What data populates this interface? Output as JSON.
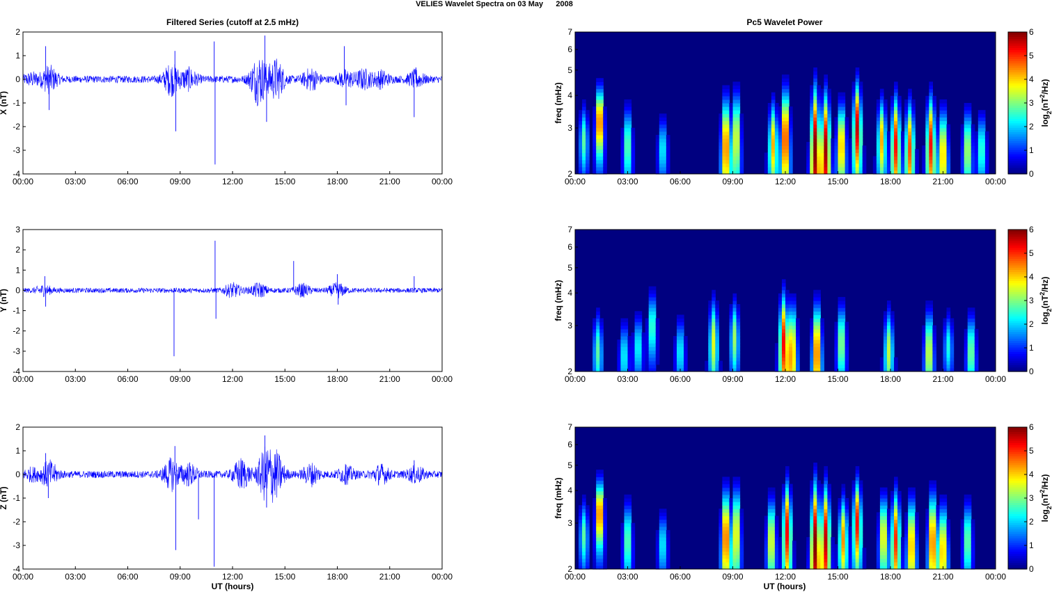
{
  "figure": {
    "title": "VELIES Wavelet Spectra on 03 May      2008",
    "left_title": "Filtered Series (cutoff at 2.5 mHz)",
    "right_title": "Pc5 Wavelet Power",
    "xlabel": "UT (hours)",
    "time_ticks": [
      "00:00",
      "03:00",
      "06:00",
      "09:00",
      "12:00",
      "15:00",
      "18:00",
      "21:00",
      "00:00"
    ],
    "freq_label": "freq (mHz)",
    "colorbar_label": "log2(nT2/Hz)",
    "colors": {
      "trace": "#0000ff"
    }
  },
  "chart_data": [
    {
      "type": "line",
      "id": "x",
      "ylabel": "X (nT)",
      "ylim": [
        -4,
        2
      ],
      "yticks": [
        -4,
        -3,
        -2,
        -1,
        0,
        1,
        2
      ],
      "xlim": [
        0,
        24
      ],
      "series": [
        {
          "x_units": "hours UT",
          "noise_amplitude_nT": 0.15
        }
      ],
      "envelope": [
        [
          0.5,
          0.2
        ],
        [
          1.5,
          0.5
        ],
        [
          8.5,
          0.6
        ],
        [
          9.5,
          0.4
        ],
        [
          13.5,
          1.0
        ],
        [
          14.5,
          0.8
        ],
        [
          16.5,
          0.4
        ],
        [
          18.5,
          0.3
        ],
        [
          19.5,
          0.35
        ],
        [
          20.5,
          0.3
        ],
        [
          22.5,
          0.3
        ]
      ],
      "spikes": [
        [
          1.3,
          1.4
        ],
        [
          1.5,
          -1.3
        ],
        [
          8.7,
          1.2
        ],
        [
          8.75,
          -2.2
        ],
        [
          10.95,
          1.6
        ],
        [
          11.0,
          -3.6
        ],
        [
          13.85,
          1.85
        ],
        [
          13.95,
          -1.8
        ],
        [
          18.4,
          1.4
        ],
        [
          18.5,
          -1.1
        ],
        [
          22.4,
          -1.6
        ],
        [
          22.5,
          0.5
        ]
      ]
    },
    {
      "type": "line",
      "id": "y",
      "ylabel": "Y (nT)",
      "ylim": [
        -4,
        3
      ],
      "yticks": [
        -4,
        -3,
        -2,
        -1,
        0,
        1,
        2,
        3
      ],
      "xlim": [
        0,
        24
      ],
      "series": [
        {
          "x_units": "hours UT",
          "noise_amplitude_nT": 0.12
        }
      ],
      "envelope": [
        [
          1.2,
          0.2
        ],
        [
          12.0,
          0.3
        ],
        [
          13.5,
          0.3
        ],
        [
          16.0,
          0.25
        ],
        [
          18.0,
          0.3
        ]
      ],
      "spikes": [
        [
          1.25,
          0.7
        ],
        [
          1.3,
          -0.8
        ],
        [
          8.65,
          -3.25
        ],
        [
          11.0,
          2.45
        ],
        [
          11.05,
          -1.4
        ],
        [
          15.5,
          1.45
        ],
        [
          18.0,
          0.8
        ],
        [
          18.05,
          -0.7
        ],
        [
          22.4,
          0.7
        ]
      ]
    },
    {
      "type": "line",
      "id": "z",
      "ylabel": "Z (nT)",
      "ylim": [
        -4,
        2
      ],
      "yticks": [
        -4,
        -3,
        -2,
        -1,
        0,
        1,
        2
      ],
      "xlim": [
        0,
        24
      ],
      "series": [
        {
          "x_units": "hours UT",
          "noise_amplitude_nT": 0.15
        }
      ],
      "envelope": [
        [
          0.5,
          0.2
        ],
        [
          1.5,
          0.5
        ],
        [
          8.5,
          0.6
        ],
        [
          9.5,
          0.4
        ],
        [
          12.5,
          0.6
        ],
        [
          13.9,
          1.0
        ],
        [
          14.5,
          0.8
        ],
        [
          16.5,
          0.4
        ],
        [
          18.5,
          0.3
        ],
        [
          20.5,
          0.35
        ],
        [
          22.5,
          0.3
        ]
      ],
      "spikes": [
        [
          1.3,
          0.9
        ],
        [
          1.45,
          -1.0
        ],
        [
          8.7,
          1.2
        ],
        [
          8.75,
          -3.2
        ],
        [
          10.05,
          -1.9
        ],
        [
          10.95,
          -3.9
        ],
        [
          13.85,
          1.65
        ],
        [
          13.95,
          -1.4
        ],
        [
          18.5,
          0.4
        ],
        [
          22.4,
          0.6
        ]
      ]
    },
    {
      "type": "heatmap",
      "id": "xw",
      "ylabel": "freq (mHz)",
      "yscale": "log",
      "ylim": [
        2,
        7
      ],
      "yticks": [
        2,
        3,
        4,
        5,
        6,
        7
      ],
      "xlim": [
        0,
        24
      ],
      "clim": [
        0,
        6
      ],
      "cticks": [
        0,
        1,
        2,
        3,
        4,
        5,
        6
      ],
      "blobs": [
        [
          0.5,
          2.7,
          2.8,
          0.8
        ],
        [
          1.4,
          3.2,
          5.4,
          1.0
        ],
        [
          3.0,
          2.6,
          3.1,
          0.9
        ],
        [
          5.0,
          2.5,
          2.4,
          0.7
        ],
        [
          8.6,
          2.6,
          5.0,
          1.2
        ],
        [
          9.2,
          2.8,
          4.0,
          1.2
        ],
        [
          11.3,
          2.6,
          4.2,
          1.0
        ],
        [
          12.0,
          2.8,
          5.5,
          1.3
        ],
        [
          13.7,
          2.5,
          6.0,
          1.6
        ],
        [
          14.3,
          2.5,
          5.8,
          1.4
        ],
        [
          15.2,
          2.6,
          4.6,
          1.0
        ],
        [
          16.1,
          3.0,
          5.6,
          1.3
        ],
        [
          17.5,
          2.7,
          4.2,
          1.0
        ],
        [
          18.3,
          2.6,
          5.2,
          1.2
        ],
        [
          19.1,
          2.5,
          4.8,
          1.1
        ],
        [
          20.3,
          2.6,
          5.2,
          1.2
        ],
        [
          21.0,
          2.4,
          4.4,
          1.0
        ],
        [
          22.4,
          2.5,
          3.6,
          0.9
        ],
        [
          23.2,
          2.5,
          2.8,
          0.8
        ]
      ]
    },
    {
      "type": "heatmap",
      "id": "yw",
      "ylabel": "freq (mHz)",
      "yscale": "log",
      "ylim": [
        2,
        7
      ],
      "yticks": [
        2,
        3,
        4,
        5,
        6,
        7
      ],
      "xlim": [
        0,
        24
      ],
      "clim": [
        0,
        6
      ],
      "cticks": [
        0,
        1,
        2,
        3,
        4,
        5,
        6
      ],
      "blobs": [
        [
          1.3,
          2.4,
          2.8,
          0.8
        ],
        [
          2.8,
          2.3,
          2.4,
          0.7
        ],
        [
          3.6,
          2.5,
          2.5,
          0.7
        ],
        [
          4.4,
          3.0,
          3.0,
          0.9
        ],
        [
          6.0,
          2.4,
          2.4,
          0.7
        ],
        [
          7.9,
          2.6,
          3.6,
          1.0
        ],
        [
          9.1,
          2.7,
          3.2,
          0.9
        ],
        [
          11.9,
          2.6,
          5.2,
          1.2
        ],
        [
          12.4,
          2.4,
          4.4,
          1.1
        ],
        [
          13.8,
          2.4,
          5.0,
          1.1
        ],
        [
          15.2,
          2.6,
          3.4,
          0.9
        ],
        [
          17.9,
          2.4,
          3.4,
          0.9
        ],
        [
          20.2,
          2.4,
          3.8,
          0.9
        ],
        [
          21.3,
          2.5,
          2.4,
          0.7
        ],
        [
          22.6,
          2.4,
          3.2,
          0.8
        ]
      ]
    },
    {
      "type": "heatmap",
      "id": "zw",
      "ylabel": "freq (mHz)",
      "yscale": "log",
      "ylim": [
        2,
        7
      ],
      "yticks": [
        2,
        3,
        4,
        5,
        6,
        7
      ],
      "xlim": [
        0,
        24
      ],
      "clim": [
        0,
        6
      ],
      "cticks": [
        0,
        1,
        2,
        3,
        4,
        5,
        6
      ],
      "blobs": [
        [
          0.5,
          2.7,
          2.8,
          0.8
        ],
        [
          1.4,
          3.3,
          5.4,
          1.0
        ],
        [
          3.0,
          2.6,
          3.1,
          0.9
        ],
        [
          5.0,
          2.5,
          2.4,
          0.7
        ],
        [
          8.6,
          2.7,
          5.2,
          1.2
        ],
        [
          9.2,
          2.8,
          4.2,
          1.2
        ],
        [
          11.2,
          2.6,
          4.0,
          1.0
        ],
        [
          12.1,
          2.8,
          5.3,
          1.3
        ],
        [
          13.7,
          2.5,
          6.0,
          1.6
        ],
        [
          14.3,
          2.6,
          5.6,
          1.4
        ],
        [
          15.3,
          2.6,
          4.4,
          1.0
        ],
        [
          16.1,
          3.0,
          5.2,
          1.2
        ],
        [
          17.6,
          2.7,
          4.2,
          1.0
        ],
        [
          18.3,
          2.6,
          5.0,
          1.2
        ],
        [
          19.2,
          2.5,
          4.6,
          1.1
        ],
        [
          20.4,
          2.6,
          5.0,
          1.2
        ],
        [
          21.0,
          2.4,
          4.4,
          1.0
        ],
        [
          22.4,
          2.6,
          3.2,
          0.9
        ]
      ]
    }
  ]
}
